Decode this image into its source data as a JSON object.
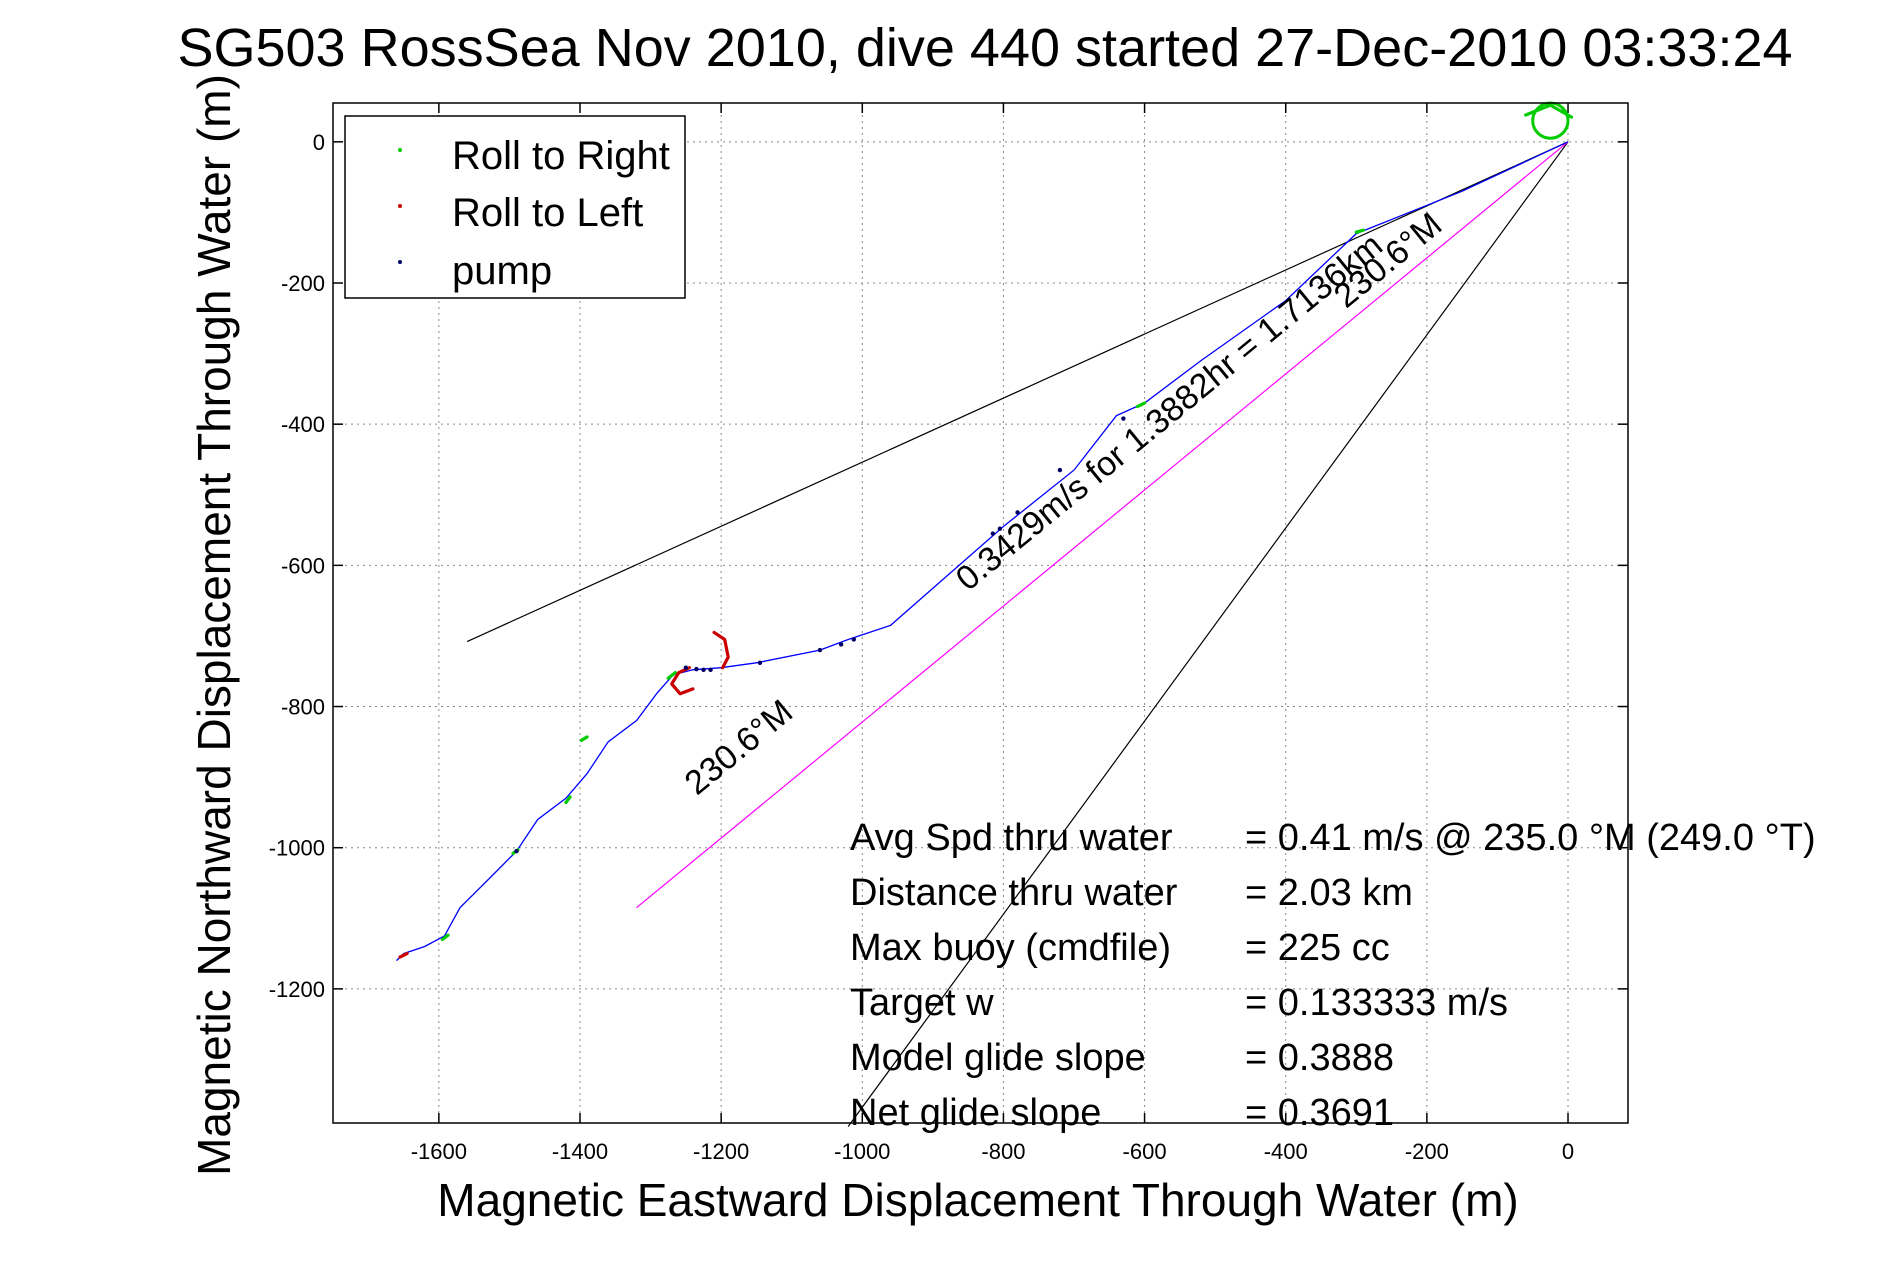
{
  "chart_data": {
    "type": "line",
    "title": "SG503 RossSea Nov 2010, dive 440 started 27-Dec-2010 03:33:24",
    "xlabel": "Magnetic Eastward Displacement Through Water (m)",
    "ylabel": "Magnetic Northward Displacement Through Water (m)",
    "xlim": [
      -1750,
      85
    ],
    "ylim": [
      -1390,
      55
    ],
    "xticks": [
      -1600,
      -1400,
      -1200,
      -1000,
      -800,
      -600,
      -400,
      -200,
      0
    ],
    "yticks": [
      0,
      -200,
      -400,
      -600,
      -800,
      -1000,
      -1200
    ],
    "grid": true,
    "legend": {
      "placement": "top-left",
      "entries": [
        {
          "label": "Roll to Right",
          "color": "#00cc00"
        },
        {
          "label": "Roll to Left",
          "color": "#cc0000"
        },
        {
          "label": "pump",
          "color": "#000066"
        }
      ]
    },
    "track": {
      "name": "track",
      "color": "#0000ff",
      "points": [
        [
          0,
          0
        ],
        [
          -150,
          -70
        ],
        [
          -300,
          -130
        ],
        [
          -400,
          -225
        ],
        [
          -520,
          -310
        ],
        [
          -600,
          -370
        ],
        [
          -640,
          -388
        ],
        [
          -700,
          -465
        ],
        [
          -800,
          -545
        ],
        [
          -880,
          -615
        ],
        [
          -960,
          -685
        ],
        [
          -1020,
          -705
        ],
        [
          -1060,
          -720
        ],
        [
          -1150,
          -738
        ],
        [
          -1200,
          -745
        ],
        [
          -1240,
          -748
        ],
        [
          -1268,
          -755
        ],
        [
          -1290,
          -780
        ],
        [
          -1320,
          -820
        ],
        [
          -1360,
          -850
        ],
        [
          -1390,
          -895
        ],
        [
          -1420,
          -930
        ],
        [
          -1460,
          -960
        ],
        [
          -1490,
          -1005
        ],
        [
          -1530,
          -1045
        ],
        [
          -1570,
          -1085
        ],
        [
          -1592,
          -1125
        ],
        [
          -1620,
          -1140
        ],
        [
          -1650,
          -1150
        ],
        [
          -1660,
          -1160
        ]
      ]
    },
    "surface_loop": {
      "color": "#00cc00",
      "center": [
        -25,
        30
      ],
      "radius": 25
    },
    "roll_right_segments": [
      [
        [
          -60,
          38
        ],
        [
          -25,
          52
        ],
        [
          5,
          35
        ]
      ],
      [
        [
          -300,
          -128
        ],
        [
          -290,
          -125
        ]
      ],
      [
        [
          -610,
          -375
        ],
        [
          -600,
          -370
        ]
      ],
      [
        [
          -1275,
          -760
        ],
        [
          -1265,
          -752
        ]
      ],
      [
        [
          -1398,
          -848
        ],
        [
          -1390,
          -843
        ]
      ],
      [
        [
          -1420,
          -936
        ],
        [
          -1414,
          -928
        ]
      ],
      [
        [
          -1495,
          -1008
        ],
        [
          -1488,
          -1003
        ]
      ],
      [
        [
          -1595,
          -1130
        ],
        [
          -1587,
          -1124
        ]
      ]
    ],
    "roll_left_segments": [
      [
        [
          -1210,
          -695
        ],
        [
          -1195,
          -705
        ],
        [
          -1190,
          -730
        ],
        [
          -1198,
          -745
        ]
      ],
      [
        [
          -1245,
          -745
        ],
        [
          -1260,
          -752
        ],
        [
          -1270,
          -768
        ],
        [
          -1258,
          -782
        ],
        [
          -1240,
          -775
        ]
      ],
      [
        [
          -1655,
          -1155
        ],
        [
          -1645,
          -1150
        ]
      ]
    ],
    "pump_points": [
      [
        -1250,
        -745
      ],
      [
        -1235,
        -747
      ],
      [
        -1225,
        -748
      ],
      [
        -1215,
        -748
      ],
      [
        -1145,
        -738
      ],
      [
        -1060,
        -720
      ],
      [
        -1030,
        -712
      ],
      [
        -1012,
        -705
      ],
      [
        -815,
        -555
      ],
      [
        -805,
        -548
      ],
      [
        -780,
        -525
      ],
      [
        -720,
        -465
      ],
      [
        -630,
        -392
      ],
      [
        -1490,
        -1005
      ]
    ],
    "heading_lines": [
      {
        "name": "heading line 230.6°M",
        "color": "#000000",
        "from": [
          0,
          0
        ],
        "to": [
          -1560,
          -708
        ]
      },
      {
        "name": "heading line 230.6°M lower",
        "color": "#000000",
        "from": [
          0,
          0
        ],
        "to": [
          -1020,
          -1395
        ]
      },
      {
        "name": "net displacement line",
        "color": "#ff00ff",
        "from": [
          0,
          0
        ],
        "to": [
          -1320,
          -1085
        ]
      }
    ],
    "annotations": [
      {
        "text": "230.6°M",
        "x": -1165,
        "y": -870,
        "rotation": 180
      },
      {
        "text": "230.6°M",
        "x": -245,
        "y": -180,
        "rotation": 180
      },
      {
        "text": "0.3429m/s for 1.3882hr = 1.7136km",
        "x": -555,
        "y": -395,
        "rotation": 180
      }
    ],
    "stats": [
      {
        "label": "Avg Spd thru water",
        "value": "=  0.41 m/s @ 235.0 °M (249.0 °T)"
      },
      {
        "label": "Distance thru water",
        "value": "=  2.03 km"
      },
      {
        "label": "Max buoy (cmdfile)",
        "value": "= 225 cc"
      },
      {
        "label": "Target w",
        "value": "= 0.133333 m/s"
      },
      {
        "label": "Model glide slope",
        "value": "= 0.3888"
      },
      {
        "label": "Net glide slope",
        "value": "= 0.3691"
      }
    ]
  }
}
